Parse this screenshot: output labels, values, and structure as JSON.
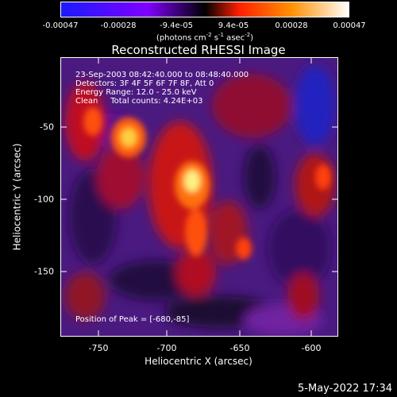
{
  "colorbar": {
    "ticks": [
      "-0.00047",
      "-0.00028",
      "-9.4e-05",
      "9.4e-05",
      "0.00028",
      "0.00047"
    ],
    "units_main": "(photons cm",
    "units_sup1": "-2",
    "units_mid1": " s",
    "units_sup2": "-1",
    "units_mid2": " asec",
    "units_sup3": "-2",
    "units_end": ")",
    "colors": [
      "#1a1aff",
      "#8000ff",
      "#000000",
      "#ff2000",
      "#ff9000",
      "#ffffff"
    ]
  },
  "title": "Reconstructed RHESSI Image",
  "overlay": {
    "line1": "23-Sep-2003 08:42:40.000 to 08:48:40.000",
    "line2": "Detectors: 3F 4F 5F 6F 7F 8F, Att 0",
    "line3": "Energy Range: 12.0 - 25.0 keV",
    "line4": "Clean     Total counts: 4.24E+03",
    "peak": "Position of Peak = [-680,-85]"
  },
  "axes": {
    "xlabel": "Heliocentric X (arcsec)",
    "ylabel": "Heliocentric Y (arcsec)",
    "xticks": [
      "-750",
      "-700",
      "-650",
      "-600"
    ],
    "yticks": [
      "-50",
      "-100",
      "-150"
    ],
    "xlim": [
      -772,
      -582
    ],
    "ylim": [
      -195,
      -5
    ]
  },
  "timestamp": "5-May-2022 17:34"
}
